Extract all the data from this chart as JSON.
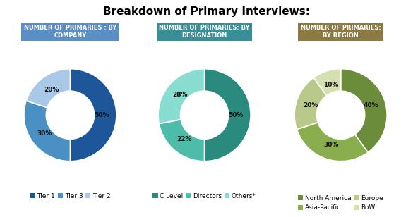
{
  "title": "Breakdown of Primary Interviews:",
  "title_fontsize": 11,
  "title_fontweight": "bold",
  "chart1": {
    "label": "NUMBER OF PRIMARIES : BY\nCOMPANY",
    "label_bg": "#5b8ec4",
    "values": [
      50,
      30,
      20
    ],
    "labels_pct": [
      "50%",
      "30%",
      "20%"
    ],
    "colors": [
      "#1e5799",
      "#4a90c4",
      "#aac8e8"
    ],
    "legend": [
      "Tier 1",
      "Tier 3",
      "Tier 2"
    ],
    "startangle": 90
  },
  "chart2": {
    "label": "NUMBER OF PRIMARIES: BY\nDESIGNATION",
    "label_bg": "#3a8f96",
    "values": [
      50,
      22,
      28
    ],
    "labels_pct": [
      "50%",
      "22%",
      "28%"
    ],
    "colors": [
      "#2a8a7e",
      "#4dbdaa",
      "#88ddd0"
    ],
    "legend": [
      "C Level",
      "Directors",
      "Others*"
    ],
    "startangle": 90
  },
  "chart3": {
    "label": "NUMBER OF PRIMARIES:\nBY REGION",
    "label_bg": "#8c7a44",
    "values": [
      40,
      30,
      20,
      10
    ],
    "labels_pct": [
      "40%",
      "30%",
      "20%",
      "10%"
    ],
    "colors": [
      "#6b8c3a",
      "#8aad4e",
      "#b8c98a",
      "#d5e0b0"
    ],
    "legend": [
      "North America",
      "Asia-Pacific",
      "Europe",
      "RoW"
    ],
    "startangle": 90
  },
  "background_color": "#ffffff",
  "wedge_edge_color": "#ffffff",
  "pct_fontsize": 6.5,
  "legend_fontsize": 6.5,
  "label_fontsize": 6.0
}
